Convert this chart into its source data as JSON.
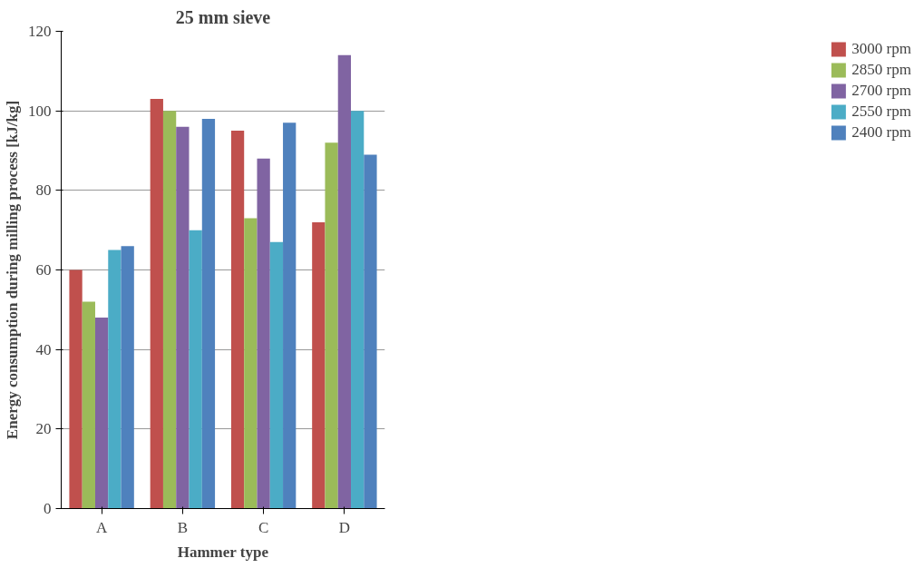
{
  "chart_data": {
    "type": "bar",
    "title": "25 mm sieve",
    "xlabel": "Hammer type",
    "ylabel": "Energy consumption during milling process [kJ/kg]",
    "categories": [
      "A",
      "B",
      "C",
      "D"
    ],
    "series": [
      {
        "name": "3000 rpm",
        "color": "#c0504d",
        "values": [
          60,
          103,
          95,
          72
        ]
      },
      {
        "name": "2850 rpm",
        "color": "#9bbb59",
        "values": [
          52,
          100,
          73,
          92
        ]
      },
      {
        "name": "2700 rpm",
        "color": "#8064a2",
        "values": [
          48,
          96,
          88,
          114
        ]
      },
      {
        "name": "2550 rpm",
        "color": "#4bacc6",
        "values": [
          65,
          70,
          67,
          100
        ]
      },
      {
        "name": "2400 rpm",
        "color": "#4f81bd",
        "values": [
          66,
          98,
          97,
          89
        ]
      }
    ],
    "ylim": [
      0,
      120
    ],
    "yticks": [
      0,
      20,
      40,
      60,
      80,
      100,
      120
    ],
    "grid": "y",
    "legend": "right"
  }
}
